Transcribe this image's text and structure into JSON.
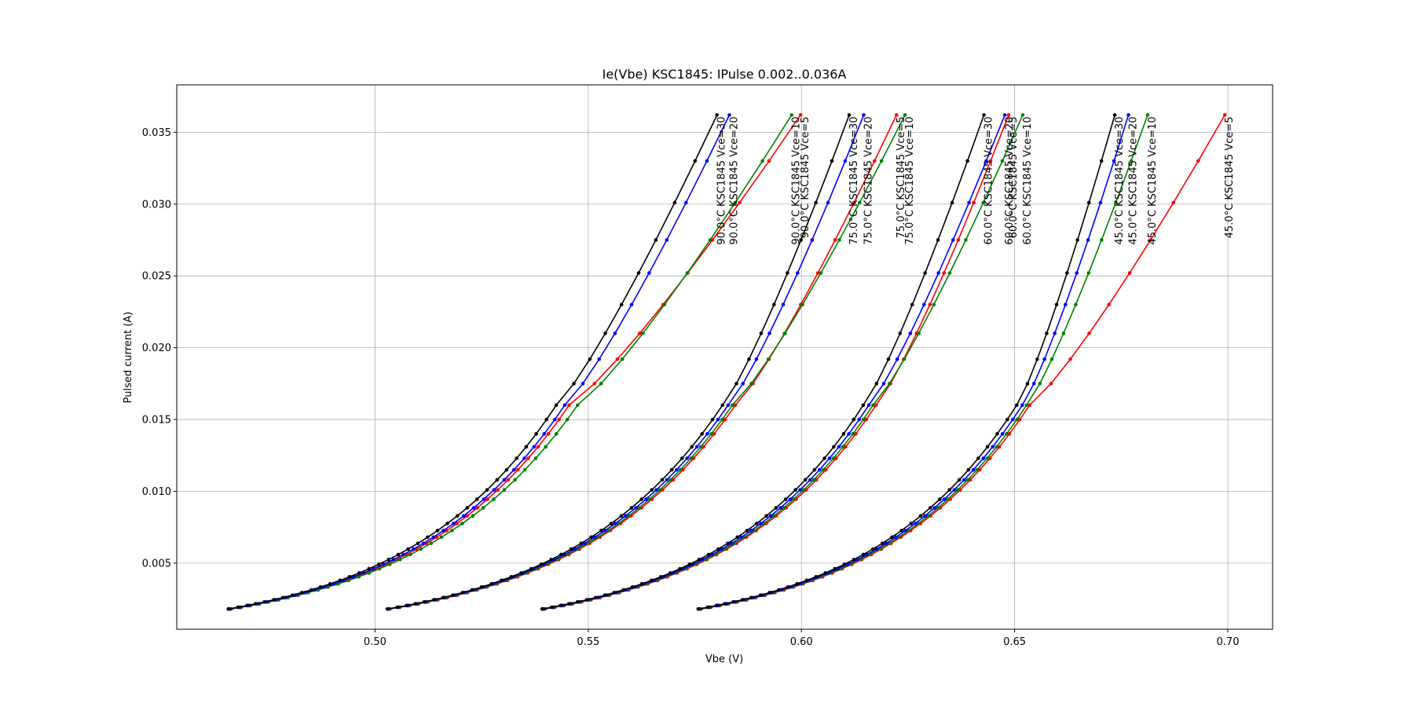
{
  "chart_data": {
    "type": "line",
    "title": "Ie(Vbe) KSC1845: IPulse 0.002..0.036A",
    "xlabel": "Vbe (V)",
    "ylabel": "Pulsed current (A)",
    "xlim": [
      0.4535,
      0.7105
    ],
    "ylim": [
      0.0004,
      0.0383
    ],
    "xticks": [
      "0.50",
      "0.55",
      "0.60",
      "0.65",
      "0.70"
    ],
    "xtick_values": [
      0.5,
      0.55,
      0.6,
      0.65,
      0.7
    ],
    "yticks": [
      "0.005",
      "0.010",
      "0.015",
      "0.020",
      "0.025",
      "0.030",
      "0.035"
    ],
    "ytick_values": [
      0.005,
      0.01,
      0.015,
      0.02,
      0.025,
      0.03,
      0.035
    ],
    "grid": true,
    "marker": "point",
    "current_levels": [
      0.00181,
      0.00193,
      0.00205,
      0.00217,
      0.0023,
      0.00245,
      0.0026,
      0.00277,
      0.00295,
      0.00314,
      0.00334,
      0.00356,
      0.0038,
      0.00405,
      0.00432,
      0.00461,
      0.00492,
      0.00525,
      0.0056,
      0.00598,
      0.00638,
      0.00681,
      0.00727,
      0.00776,
      0.00829,
      0.00885,
      0.00945,
      0.0101,
      0.0108,
      0.0115,
      0.0123,
      0.0131,
      0.014,
      0.015,
      0.016,
      0.0175,
      0.0192,
      0.021,
      0.023,
      0.0252,
      0.0275,
      0.0301,
      0.033,
      0.0362
    ],
    "series": [
      {
        "name": "45.0°C KSC1845 Vce=5",
        "color": "#ff0000",
        "v_start": 0.5765,
        "v_knee": 0.6535,
        "v_end": 0.6993
      },
      {
        "name": "45.0°C KSC1845 Vce=10",
        "color": "#008000",
        "v_start": 0.5763,
        "v_knee": 0.6528,
        "v_end": 0.6812
      },
      {
        "name": "45.0°C KSC1845 Vce=20",
        "color": "#0000ff",
        "v_start": 0.5761,
        "v_knee": 0.6518,
        "v_end": 0.6767
      },
      {
        "name": "45.0°C KSC1845 Vce=30",
        "color": "#000000",
        "v_start": 0.5758,
        "v_knee": 0.6505,
        "v_end": 0.6735
      },
      {
        "name": "60.0°C KSC1845 Vce=5",
        "color": "#ff0000",
        "v_start": 0.5399,
        "v_knee": 0.6175,
        "v_end": 0.6486
      },
      {
        "name": "60.0°C KSC1845 Vce=10",
        "color": "#008000",
        "v_start": 0.5397,
        "v_knee": 0.6168,
        "v_end": 0.6519
      },
      {
        "name": "60.0°C KSC1845 Vce=20",
        "color": "#0000ff",
        "v_start": 0.5395,
        "v_knee": 0.6158,
        "v_end": 0.6477
      },
      {
        "name": "60.0°C KSC1845 Vce=30",
        "color": "#000000",
        "v_start": 0.5392,
        "v_knee": 0.6145,
        "v_end": 0.6428
      },
      {
        "name": "75.0°C KSC1845 Vce=5",
        "color": "#ff0000",
        "v_start": 0.5035,
        "v_knee": 0.5845,
        "v_end": 0.6223
      },
      {
        "name": "75.0°C KSC1845 Vce=10",
        "color": "#008000",
        "v_start": 0.5033,
        "v_knee": 0.5838,
        "v_end": 0.6243
      },
      {
        "name": "75.0°C KSC1845 Vce=20",
        "color": "#0000ff",
        "v_start": 0.5031,
        "v_knee": 0.5828,
        "v_end": 0.6146
      },
      {
        "name": "75.0°C KSC1845 Vce=30",
        "color": "#000000",
        "v_start": 0.5029,
        "v_knee": 0.5815,
        "v_end": 0.6112
      },
      {
        "name": "90.0°C KSC1845 Vce=5",
        "color": "#ff0000",
        "v_start": 0.4663,
        "v_knee": 0.5455,
        "v_end": 0.5998
      },
      {
        "name": "90.0°C KSC1845 Vce=10",
        "color": "#008000",
        "v_start": 0.4661,
        "v_knee": 0.5475,
        "v_end": 0.5977
      },
      {
        "name": "90.0°C KSC1845 Vce=20",
        "color": "#0000ff",
        "v_start": 0.4659,
        "v_knee": 0.5445,
        "v_end": 0.5831
      },
      {
        "name": "90.0°C KSC1845 Vce=30",
        "color": "#000000",
        "v_start": 0.4656,
        "v_knee": 0.5425,
        "v_end": 0.5802
      }
    ]
  }
}
